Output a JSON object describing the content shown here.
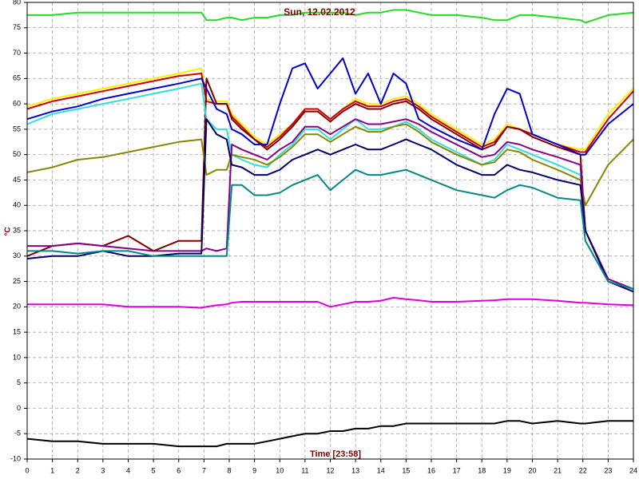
{
  "chart_data": {
    "type": "line",
    "title": "Sun, 12.02.2012",
    "ylabel": "°C",
    "xlabel": "Time [23:58]",
    "x": [
      0,
      1,
      2,
      3,
      4,
      5,
      6,
      6.9,
      7.1,
      7.5,
      7.9,
      8.1,
      8.5,
      9,
      9.5,
      10,
      10.5,
      11,
      11.5,
      12,
      12.5,
      13,
      13.5,
      14,
      14.5,
      15,
      15.5,
      16,
      17,
      18,
      18.5,
      19,
      19.5,
      20,
      21,
      21.9,
      22.1,
      23,
      24
    ],
    "xlim": [
      0,
      24
    ],
    "xticks": [
      0,
      1,
      2,
      3,
      4,
      5,
      6,
      7,
      8,
      9,
      10,
      11,
      12,
      13,
      14,
      15,
      16,
      17,
      18,
      19,
      20,
      21,
      22,
      23,
      24
    ],
    "ylim": [
      -10,
      80
    ],
    "yticks": [
      -10,
      -5,
      0,
      5,
      10,
      15,
      20,
      25,
      30,
      35,
      40,
      45,
      50,
      55,
      60,
      65,
      70,
      75,
      80
    ],
    "grid": true,
    "series": [
      {
        "color": "#22dd22",
        "values": [
          77.5,
          77.5,
          78,
          78,
          78,
          78,
          78,
          78,
          76.5,
          76.5,
          77,
          77,
          76.5,
          77,
          77,
          77.5,
          77.5,
          78,
          78,
          78,
          78,
          77.5,
          78,
          78,
          78.5,
          78.5,
          78,
          77.5,
          77.5,
          77,
          76.5,
          76.5,
          77.5,
          77.5,
          77,
          76.5,
          76,
          77.5,
          78
        ]
      },
      {
        "color": "#ffee00",
        "values": [
          59.5,
          61,
          62,
          63,
          64,
          65,
          66,
          67,
          61,
          60.5,
          60.5,
          58,
          56,
          53.5,
          52,
          54,
          56,
          59,
          59,
          57,
          59,
          61,
          60,
          60,
          61,
          61.5,
          60,
          58,
          55,
          52,
          53,
          56,
          55,
          54,
          52,
          51,
          51,
          58,
          63
        ]
      },
      {
        "color": "#cc0000",
        "values": [
          59,
          60.5,
          61.5,
          62.5,
          63.5,
          64.5,
          65.5,
          66,
          60.5,
          60,
          60,
          57.5,
          55.5,
          53,
          51.5,
          53.5,
          56,
          59,
          59,
          57,
          59,
          60.5,
          59.5,
          59.5,
          60.5,
          61,
          59.5,
          57.5,
          54.5,
          51.5,
          52.5,
          55.5,
          55,
          54,
          52,
          50.5,
          50.5,
          57,
          62.5
        ]
      },
      {
        "color": "#800000",
        "values": [
          30,
          32,
          32.5,
          32,
          34,
          31,
          33,
          33,
          65,
          60,
          60,
          57,
          55,
          53,
          51,
          53,
          55.5,
          58.5,
          58.5,
          56.5,
          58.5,
          60,
          59,
          59,
          60,
          60.5,
          59,
          57,
          54,
          51,
          52,
          55.5,
          55,
          53.5,
          51.5,
          50,
          35,
          25,
          23.5
        ]
      },
      {
        "color": "#0000cc",
        "values": [
          57,
          58.5,
          59.5,
          61,
          62,
          63,
          64,
          65,
          63,
          59,
          58,
          55,
          54,
          52,
          52,
          60,
          67,
          68,
          63,
          66,
          69,
          62,
          66,
          60,
          66,
          64,
          57,
          55.5,
          53,
          51,
          58,
          63,
          62,
          54,
          52,
          50,
          50,
          56,
          60
        ]
      },
      {
        "color": "#33dddd",
        "values": [
          56,
          58,
          59,
          60,
          61,
          62,
          63,
          64,
          57,
          55,
          55,
          50,
          49,
          48,
          47.5,
          50,
          52,
          55,
          55,
          53,
          55,
          57,
          55,
          55,
          55.5,
          56.5,
          55,
          53,
          50.5,
          48,
          49,
          52,
          51,
          50,
          48,
          46,
          35,
          25,
          23.5
        ]
      },
      {
        "color": "#888800",
        "values": [
          46.5,
          47.5,
          49,
          49.5,
          50.5,
          51.5,
          52.5,
          53,
          46,
          47,
          47,
          50,
          49.5,
          49,
          48,
          49.5,
          51.5,
          54,
          54,
          52.5,
          54,
          55.5,
          54.5,
          54.5,
          55.5,
          56,
          54.5,
          52.5,
          50,
          48,
          48.5,
          51,
          50.5,
          49,
          47,
          45,
          40,
          48,
          53
        ]
      },
      {
        "color": "#880088",
        "values": [
          32,
          32,
          32.5,
          32,
          31.5,
          31,
          31,
          31,
          31.5,
          31,
          31.5,
          52,
          51,
          50,
          49,
          51,
          52.5,
          55.5,
          55.5,
          54,
          55.5,
          57,
          56,
          56,
          56.5,
          57,
          56,
          54.5,
          52,
          49.5,
          50,
          52.5,
          52,
          51,
          49.5,
          48,
          35,
          25.5,
          23.5
        ]
      },
      {
        "color": "#000066",
        "values": [
          29.5,
          30,
          30,
          31,
          30,
          30,
          30.5,
          30.5,
          57,
          54,
          53,
          48,
          47.5,
          46,
          46,
          47,
          49,
          50,
          51,
          50,
          51,
          52,
          51,
          51,
          52,
          53,
          52,
          51,
          48,
          46,
          46,
          48,
          47,
          46.5,
          45,
          44,
          35,
          25,
          23
        ]
      },
      {
        "color": "#008888",
        "values": [
          31,
          31,
          30.5,
          31,
          31,
          30,
          30,
          30,
          30,
          30,
          30,
          44,
          44,
          42,
          42,
          42.5,
          44,
          45,
          46,
          43,
          45,
          47,
          46,
          46,
          46.5,
          47,
          46,
          45,
          43,
          42,
          41.5,
          43,
          44,
          43.5,
          41.5,
          41,
          33,
          25,
          23.5
        ]
      },
      {
        "color": "#dd00dd",
        "values": [
          20.5,
          20.5,
          20.5,
          20.5,
          20,
          20,
          20,
          19.8,
          20,
          20.3,
          20.5,
          20.8,
          21,
          21,
          21,
          21,
          21,
          21,
          21,
          20,
          20.5,
          21,
          21,
          21.2,
          21.8,
          21.5,
          21.3,
          21,
          21,
          21.2,
          21.3,
          21.5,
          21.5,
          21.5,
          21.2,
          20.8,
          20.8,
          20.5,
          20.3
        ]
      },
      {
        "color": "#000000",
        "values": [
          -6,
          -6.5,
          -6.5,
          -7,
          -7,
          -7,
          -7.5,
          -7.5,
          -7.5,
          -7.5,
          -7,
          -7,
          -7,
          -7,
          -6.5,
          -6,
          -5.5,
          -5,
          -5,
          -4.5,
          -4.5,
          -4,
          -4,
          -3.5,
          -3.5,
          -3,
          -3,
          -3,
          -3,
          -3,
          -3,
          -2.5,
          -2.5,
          -3,
          -2.5,
          -3,
          -3,
          -2.5,
          -2.5
        ]
      }
    ]
  }
}
